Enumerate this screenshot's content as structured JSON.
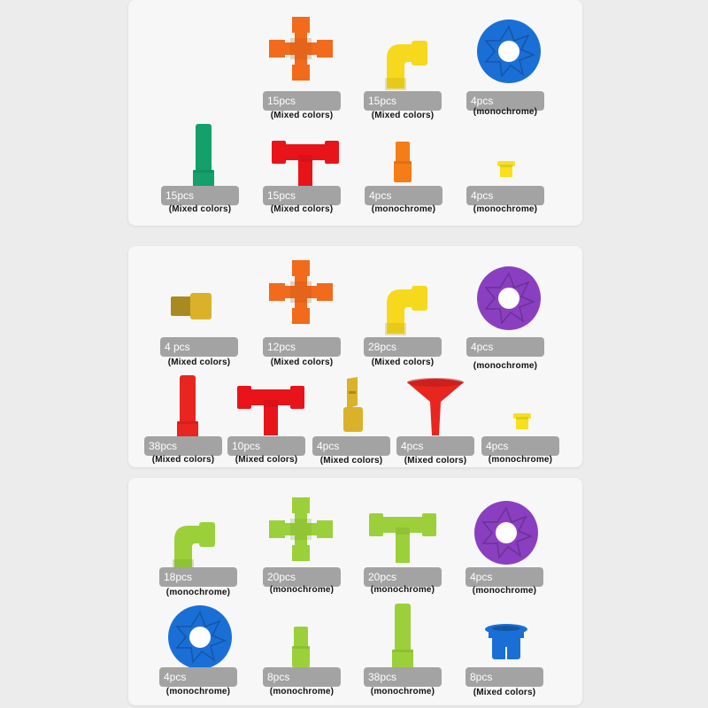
{
  "panels": [
    {
      "items": [
        {
          "count": "15pcs",
          "note": "(Mixed colors)",
          "icon": "pipe-cross-icon",
          "color": "#f26a1b"
        },
        {
          "count": "15pcs",
          "note": "(Mixed colors)",
          "icon": "pipe-elbow-icon",
          "color": "#f6d91c"
        },
        {
          "count": "4pcs",
          "note": "(monochrome)",
          "icon": "disk-icon",
          "color": "#1a6fd6"
        },
        {
          "count": "15pcs",
          "note": "(Mixed colors)",
          "icon": "pipe-tube-icon",
          "color": "#13a06a"
        },
        {
          "count": "15pcs",
          "note": "(Mixed colors)",
          "icon": "pipe-tee-icon",
          "color": "#e8141a"
        },
        {
          "count": "4pcs",
          "note": "(monochrome)",
          "icon": "small-tube-icon",
          "color": "#f57c16"
        },
        {
          "count": "4pcs",
          "note": "(monochrome)",
          "icon": "cap-icon",
          "color": "#f7e01e"
        }
      ]
    },
    {
      "items": [
        {
          "count": "4 pcs",
          "note": "(Mixed colors)",
          "icon": "reducer-icon",
          "color": "#d9b22a"
        },
        {
          "count": "12pcs",
          "note": "(Mixed colors)",
          "icon": "pipe-cross-icon",
          "color": "#f26a1b"
        },
        {
          "count": "28pcs",
          "note": "(Mixed colors)",
          "icon": "pipe-elbow-icon",
          "color": "#f6d91c"
        },
        {
          "count": "4pcs",
          "note": "(monochrome)",
          "icon": "disk-icon",
          "color": "#8a3fc0"
        },
        {
          "count": "38pcs",
          "note": "(Mixed colors)",
          "icon": "pipe-tube-icon",
          "color": "#e8251f"
        },
        {
          "count": "10pcs",
          "note": "(Mixed colors)",
          "icon": "pipe-tee-icon",
          "color": "#e8141a"
        },
        {
          "count": "4pcs",
          "note": "(Mixed colors)",
          "icon": "whistle-icon",
          "color": "#d9b22a"
        },
        {
          "count": "4pcs",
          "note": "(Mixed colors)",
          "icon": "funnel-icon",
          "color": "#e8251f"
        },
        {
          "count": "4pcs",
          "note": "(monochrome)",
          "icon": "cap-icon",
          "color": "#f7e01e"
        }
      ]
    },
    {
      "items": [
        {
          "count": "18pcs",
          "note": "(monochrome)",
          "icon": "pipe-elbow-icon",
          "color": "#9bd03a"
        },
        {
          "count": "20pcs",
          "note": "(monochrome)",
          "icon": "pipe-cross-icon",
          "color": "#9bd03a"
        },
        {
          "count": "20pcs",
          "note": "(monochrome)",
          "icon": "pipe-tee-icon",
          "color": "#9bd03a"
        },
        {
          "count": "4pcs",
          "note": "(monochrome)",
          "icon": "disk-icon",
          "color": "#8a3fc0"
        },
        {
          "count": "4pcs",
          "note": "(monochrome)",
          "icon": "disk-icon",
          "color": "#1a6fd6"
        },
        {
          "count": "8pcs",
          "note": "(monochrome)",
          "icon": "small-tube-icon",
          "color": "#9bd03a"
        },
        {
          "count": "38pcs",
          "note": "(monochrome)",
          "icon": "pipe-tube-icon",
          "color": "#9bd03a"
        },
        {
          "count": "8pcs",
          "note": "(Mixed colors)",
          "icon": "bushing-icon",
          "color": "#1a6fd6"
        }
      ]
    }
  ]
}
